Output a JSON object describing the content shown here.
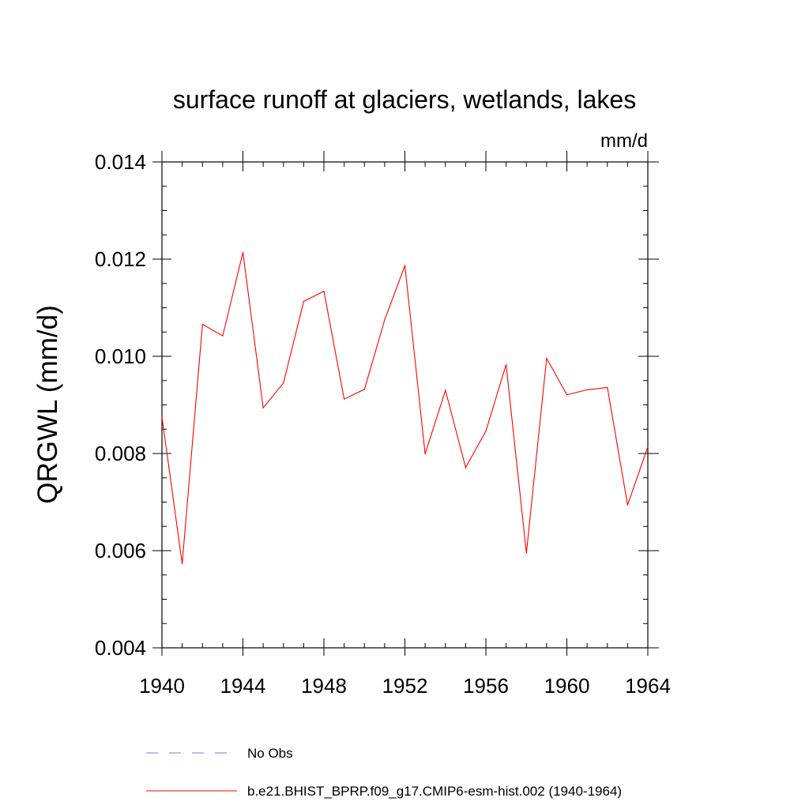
{
  "chart_data": {
    "type": "line",
    "title": "surface runoff at glaciers, wetlands, lakes",
    "units_label": "mm/d",
    "ylabel": "QRGWL  (mm/d)",
    "xlabel": "",
    "xlim": [
      1940,
      1964
    ],
    "ylim": [
      0.004,
      0.014
    ],
    "x_ticks": [
      1940,
      1944,
      1948,
      1952,
      1956,
      1960,
      1964
    ],
    "x_tick_labels": [
      "1940",
      "1944",
      "1948",
      "1952",
      "1956",
      "1960",
      "1964"
    ],
    "y_ticks": [
      0.004,
      0.006,
      0.008,
      0.01,
      0.012,
      0.014
    ],
    "y_tick_labels": [
      "0.004",
      "0.006",
      "0.008",
      "0.010",
      "0.012",
      "0.014"
    ],
    "x": [
      1940,
      1941,
      1942,
      1943,
      1944,
      1945,
      1946,
      1947,
      1948,
      1949,
      1950,
      1951,
      1952,
      1953,
      1954,
      1955,
      1956,
      1957,
      1958,
      1959,
      1960,
      1961,
      1962,
      1963,
      1964
    ],
    "series": [
      {
        "name": "b.e21.BHIST_BPRP.f09_g17.CMIP6-esm-hist.002 (1940-1964)",
        "color": "#ff0000",
        "values": [
          0.00875,
          0.00573,
          0.01066,
          0.01042,
          0.01214,
          0.00894,
          0.00945,
          0.01113,
          0.01134,
          0.00912,
          0.00932,
          0.01075,
          0.01187,
          0.00799,
          0.0093,
          0.00771,
          0.00846,
          0.00983,
          0.00595,
          0.00996,
          0.00921,
          0.00931,
          0.00936,
          0.00694,
          0.00814
        ]
      }
    ],
    "legend": [
      {
        "label": "No Obs",
        "color": "#7b7bd6",
        "style": "dashed"
      },
      {
        "label": "b.e21.BHIST_BPRP.f09_g17.CMIP6-esm-hist.002 (1940-1964)",
        "color": "#ff0000",
        "style": "solid"
      }
    ],
    "legend_position": "bottom",
    "grid": false
  }
}
